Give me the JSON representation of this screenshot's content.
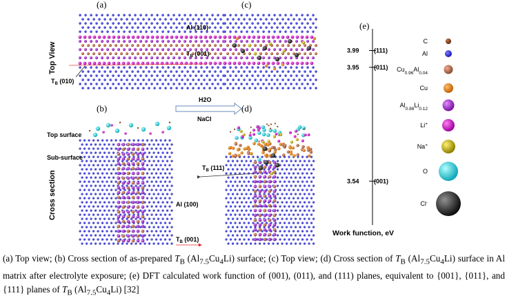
{
  "figure": {
    "panel_labels": {
      "a": "(a)",
      "b": "(b)",
      "c": "(c)",
      "d": "(d)",
      "e": "(e)"
    },
    "row_labels": {
      "top": "Top View",
      "bottom": "Cross section"
    },
    "annotations": {
      "al110": "Al (110)",
      "tb001_top": "T",
      "tb001_top_sub": "B",
      "tb001_top_rest": " (001)",
      "tb010": "T",
      "tb010_sub": "B",
      "tb010_rest": " (010)",
      "top_surface": "Top surface",
      "sub_surface": "Sub-surface",
      "al100": "Al (100)",
      "tb001_bottom": "T",
      "tb001_bottom_sub": "B",
      "tb001_bottom_rest": " (001)",
      "tb111": "T",
      "tb111_sub": "B",
      "tb111_rest": " (111)",
      "h2o": "H2O",
      "nacl": "NaCl"
    },
    "work_function": {
      "axis_label": "Work function, eV",
      "ticks": [
        {
          "value": "3.99",
          "plane": "(111)"
        },
        {
          "value": "3.95",
          "plane": "(011)"
        },
        {
          "value": "3.54",
          "plane": "(001)"
        }
      ]
    },
    "legend": [
      {
        "label": "C",
        "color": "#8a4a1e"
      },
      {
        "label": "Al",
        "color": "#2a2ad0"
      },
      {
        "label": "Cu0.96Al0.04",
        "color": "#c07a54"
      },
      {
        "label": "Cu",
        "color": "#f08a1a"
      },
      {
        "label": "Al0.88Li0.12",
        "color": "#a040c0"
      },
      {
        "label": "Li+",
        "color": "#d020c8"
      },
      {
        "label": "Na+",
        "color": "#c8b818"
      },
      {
        "label": "O",
        "color": "#30d8e0"
      },
      {
        "label": "Cl-",
        "color": "#303030"
      }
    ]
  },
  "caption": {
    "text": "(a) Top view; (b) Cross section of as-prepared TB (Al7.5Cu4Li) surface; (c) Top view; (d) Cross section of TB (Al7.5Cu4Li) surface in Al matrix after electrolyte exposure; (e) DFT calculated work function of (001), (011), and (111) planes, equivalent to {001}, {011}, and {111} planes of TB (Al7.5Cu4Li) [32]"
  }
}
